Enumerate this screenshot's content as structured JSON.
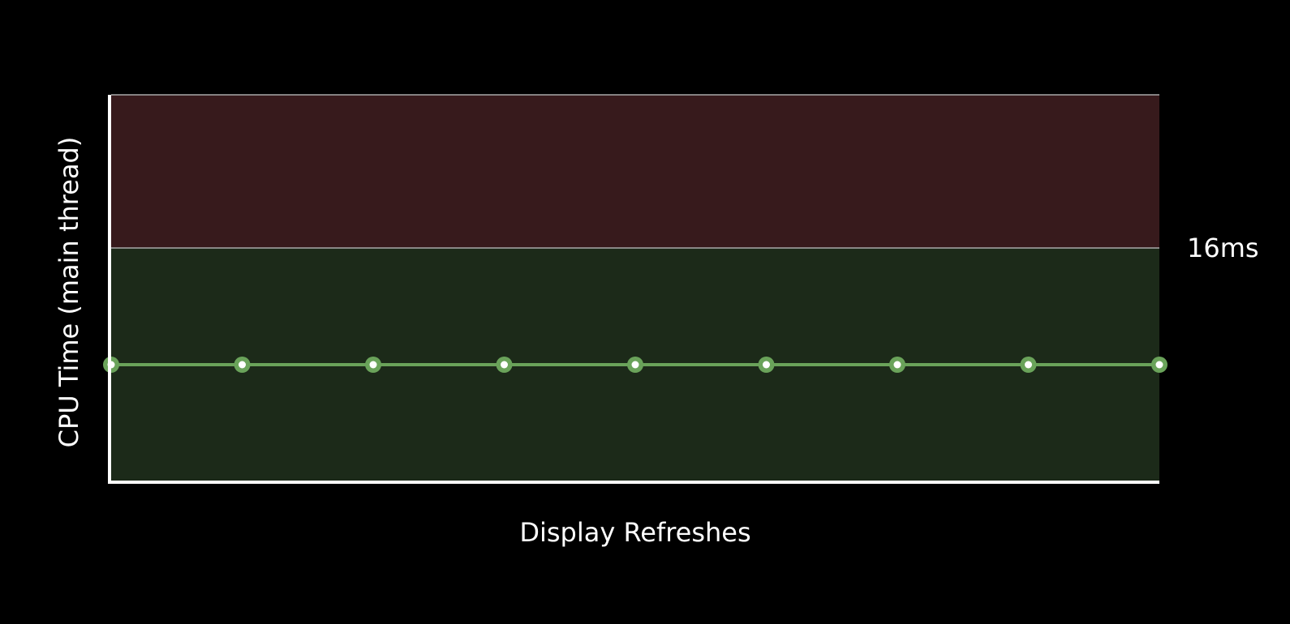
{
  "chart_data": {
    "type": "line",
    "title": "",
    "xlabel": "Display Refreshes",
    "ylabel": "CPU Time (main thread)",
    "threshold": {
      "value": 16,
      "label": "16ms"
    },
    "ylim": [
      0,
      26.5
    ],
    "x": [
      1,
      2,
      3,
      4,
      5,
      6,
      7,
      8,
      9
    ],
    "series": [
      {
        "values": [
          8,
          8,
          8,
          8,
          8,
          8,
          8,
          8,
          8
        ]
      }
    ],
    "grid": false,
    "colors": {
      "over_budget_zone": "#371a1c",
      "under_budget_zone": "#1c2a19",
      "line": "#6aa35a",
      "marker_fill": "#ffffff",
      "axis": "#ffffff",
      "threshold_line": "#a9a9a9",
      "text": "#ffffff"
    }
  }
}
